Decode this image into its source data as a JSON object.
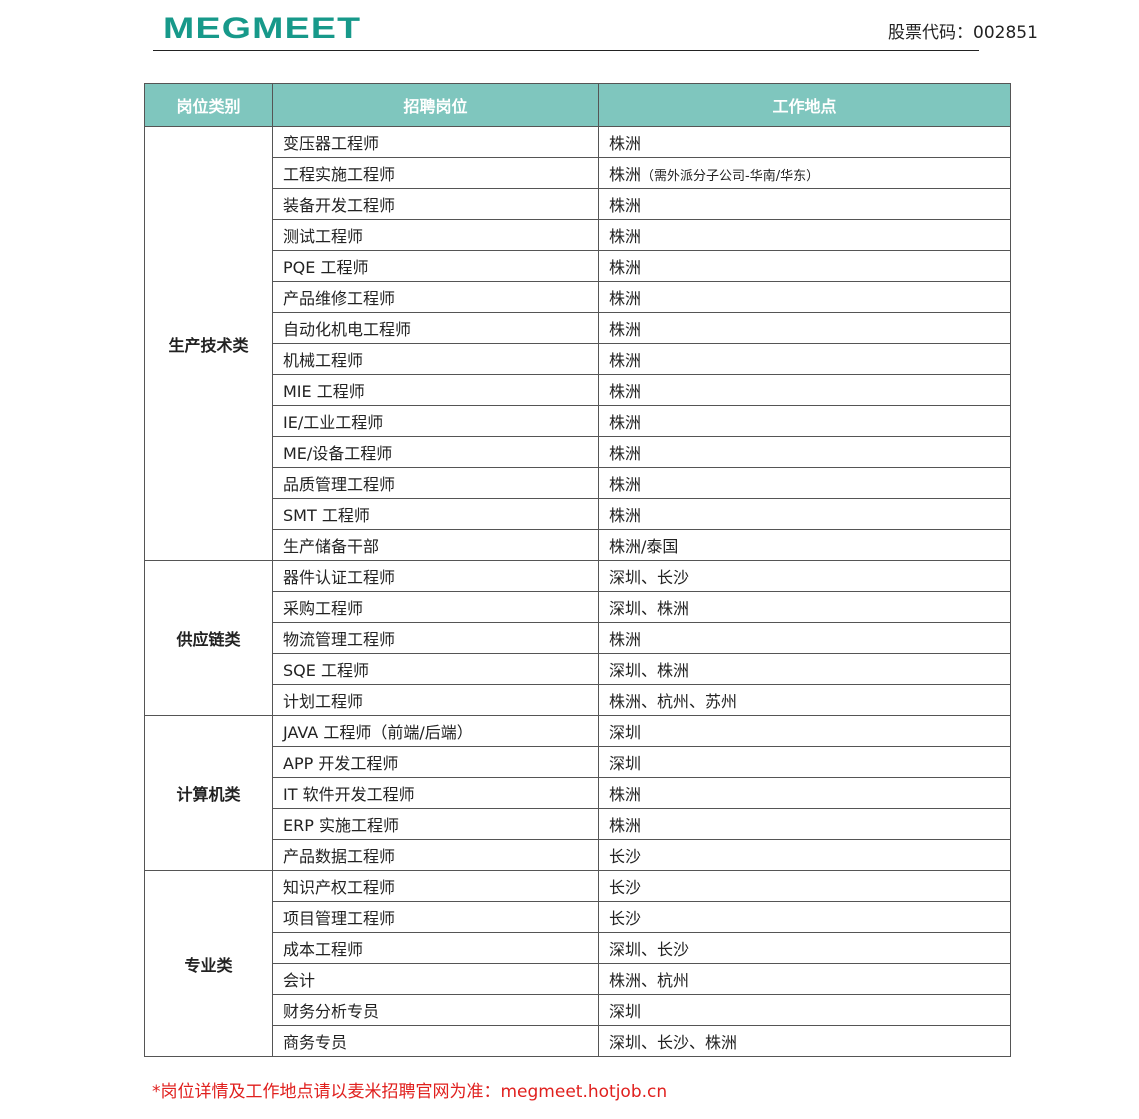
{
  "header": {
    "logo": "MEGMEET",
    "stock_code": "股票代码：002851"
  },
  "table": {
    "columns": [
      "岗位类别",
      "招聘岗位",
      "工作地点"
    ],
    "groups": [
      {
        "category": "生产技术类",
        "rows": [
          [
            "变压器工程师",
            "株洲",
            ""
          ],
          [
            "工程实施工程师",
            "株洲",
            "（需外派分子公司-华南/华东）"
          ],
          [
            "装备开发工程师",
            "株洲",
            ""
          ],
          [
            "测试工程师",
            "株洲",
            ""
          ],
          [
            "PQE 工程师",
            "株洲",
            ""
          ],
          [
            "产品维修工程师",
            "株洲",
            ""
          ],
          [
            "自动化机电工程师",
            "株洲",
            ""
          ],
          [
            "机械工程师",
            "株洲",
            ""
          ],
          [
            "MIE 工程师",
            "株洲",
            ""
          ],
          [
            "IE/工业工程师",
            "株洲",
            ""
          ],
          [
            "ME/设备工程师",
            "株洲",
            ""
          ],
          [
            "品质管理工程师",
            "株洲",
            ""
          ],
          [
            "SMT 工程师",
            "株洲",
            ""
          ],
          [
            "生产储备干部",
            "株洲/泰国",
            ""
          ]
        ]
      },
      {
        "category": "供应链类",
        "rows": [
          [
            "器件认证工程师",
            "深圳、长沙",
            ""
          ],
          [
            "采购工程师",
            "深圳、株洲",
            ""
          ],
          [
            "物流管理工程师",
            "株洲",
            ""
          ],
          [
            "SQE 工程师",
            "深圳、株洲",
            ""
          ],
          [
            "计划工程师",
            "株洲、杭州、苏州",
            ""
          ]
        ]
      },
      {
        "category": "计算机类",
        "rows": [
          [
            "JAVA 工程师（前端/后端）",
            "深圳",
            ""
          ],
          [
            "APP 开发工程师",
            "深圳",
            ""
          ],
          [
            "IT 软件开发工程师",
            "株洲",
            ""
          ],
          [
            "ERP  实施工程师",
            "株洲",
            ""
          ],
          [
            "产品数据工程师",
            "长沙",
            ""
          ]
        ]
      },
      {
        "category": "专业类",
        "rows": [
          [
            "知识产权工程师",
            "长沙",
            ""
          ],
          [
            "项目管理工程师",
            "长沙",
            ""
          ],
          [
            "成本工程师",
            "深圳、长沙",
            ""
          ],
          [
            "会计",
            "株洲、杭州",
            ""
          ],
          [
            "财务分析专员",
            "深圳",
            ""
          ],
          [
            "商务专员",
            "深圳、长沙、株洲",
            ""
          ]
        ]
      }
    ]
  },
  "footer": {
    "note": "*岗位详情及工作地点请以麦米招聘官网为准：megmeet.hotjob.cn"
  },
  "colors": {
    "header_bg": "#7fc6be",
    "logo": "#17998a",
    "footer": "#e0201e"
  }
}
